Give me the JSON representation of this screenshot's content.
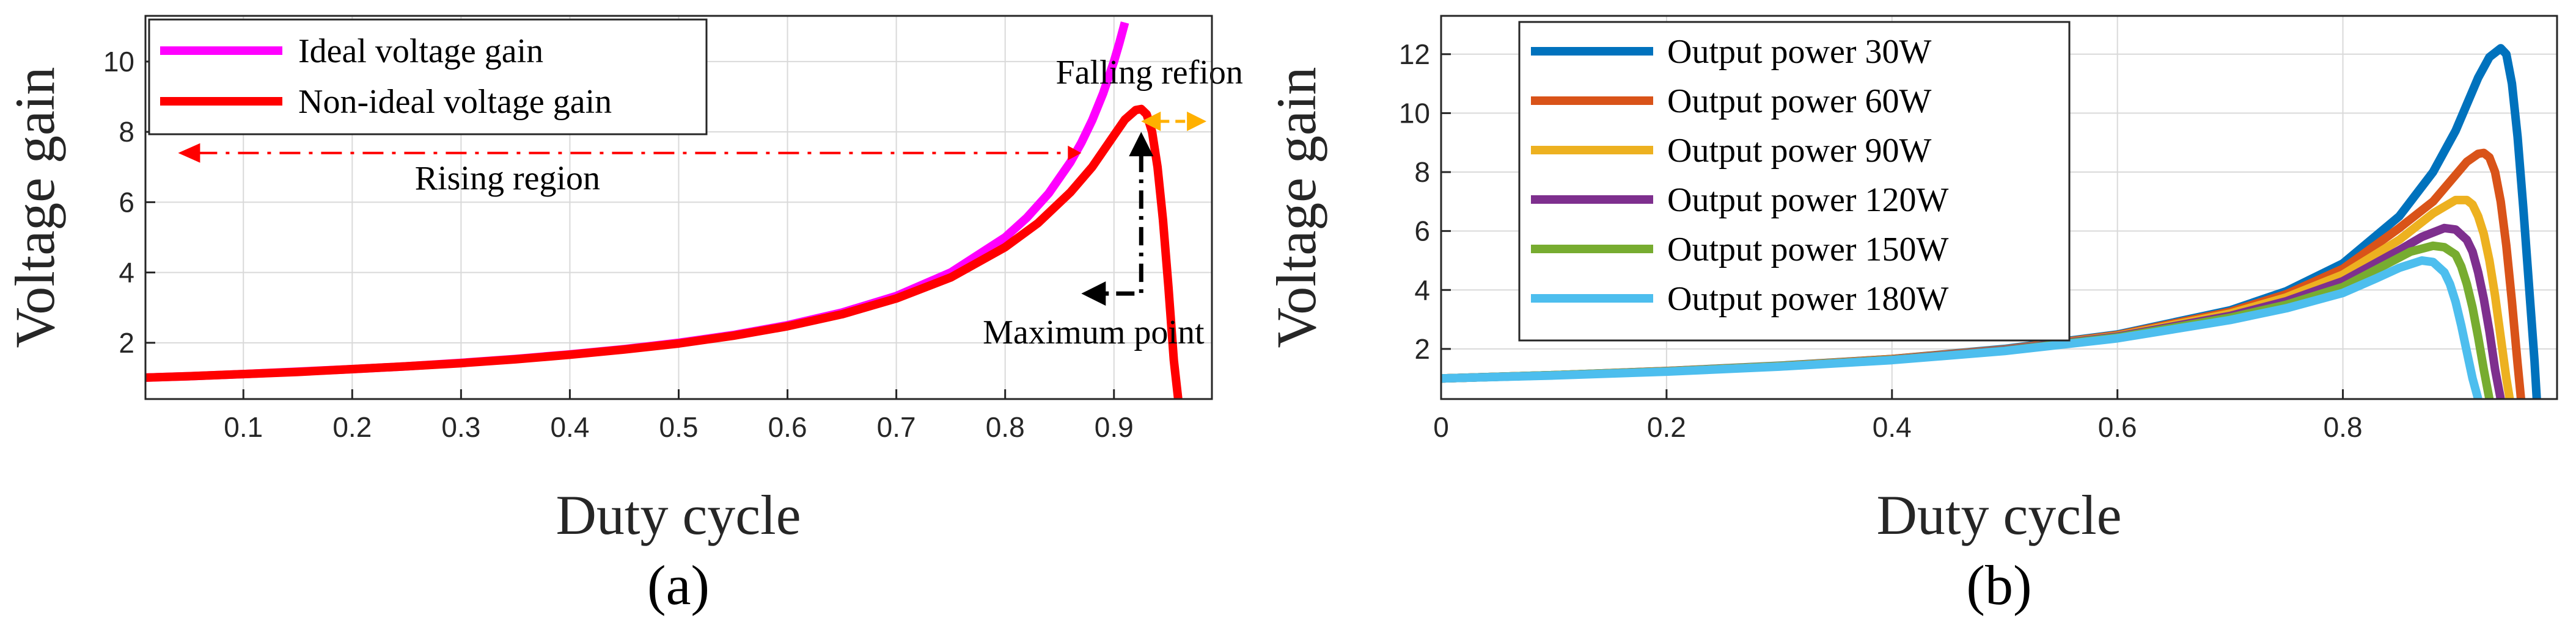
{
  "chart_data": [
    {
      "type": "line",
      "panel": "a",
      "caption": "(a)",
      "xlabel": "Duty cycle",
      "ylabel": "Voltage gain",
      "xlim": [
        0.01,
        0.99
      ],
      "ylim": [
        0.4,
        11.3
      ],
      "xticks": [
        0.1,
        0.2,
        0.3,
        0.4,
        0.5,
        0.6,
        0.7,
        0.8,
        0.9
      ],
      "xtick_labels": [
        "0.1",
        "0.2",
        "0.3",
        "0.4",
        "0.5",
        "0.6",
        "0.7",
        "0.8",
        "0.9"
      ],
      "yticks": [
        2,
        4,
        6,
        8,
        10
      ],
      "ytick_labels": [
        "2",
        "4",
        "6",
        "8",
        "10"
      ],
      "grid": true,
      "legend_position": "top-left",
      "series": [
        {
          "name": "Ideal voltage gain",
          "color": "#ff00ff",
          "x": [
            0.01,
            0.05,
            0.1,
            0.15,
            0.2,
            0.25,
            0.3,
            0.35,
            0.4,
            0.45,
            0.5,
            0.55,
            0.6,
            0.65,
            0.7,
            0.75,
            0.8,
            0.82,
            0.84,
            0.86,
            0.87,
            0.88,
            0.89,
            0.9,
            0.905,
            0.91
          ],
          "y": [
            1.01,
            1.05,
            1.11,
            1.18,
            1.25,
            1.33,
            1.43,
            1.54,
            1.67,
            1.82,
            2.0,
            2.22,
            2.5,
            2.86,
            3.33,
            4.0,
            5.0,
            5.56,
            6.25,
            7.14,
            7.69,
            8.33,
            9.09,
            10.0,
            10.53,
            11.11
          ]
        },
        {
          "name": "Non-ideal voltage gain",
          "color": "#ff0000",
          "x": [
            0.01,
            0.05,
            0.1,
            0.15,
            0.2,
            0.25,
            0.3,
            0.35,
            0.4,
            0.45,
            0.5,
            0.55,
            0.6,
            0.65,
            0.7,
            0.75,
            0.8,
            0.83,
            0.86,
            0.88,
            0.9,
            0.91,
            0.92,
            0.925,
            0.93,
            0.935,
            0.94,
            0.945,
            0.95,
            0.955,
            0.959
          ],
          "y": [
            1.01,
            1.05,
            1.11,
            1.17,
            1.25,
            1.33,
            1.42,
            1.53,
            1.66,
            1.81,
            1.98,
            2.2,
            2.47,
            2.81,
            3.26,
            3.86,
            4.72,
            5.4,
            6.28,
            7.0,
            7.9,
            8.35,
            8.62,
            8.65,
            8.5,
            8.0,
            7.0,
            5.5,
            3.6,
            1.5,
            0.4
          ]
        }
      ],
      "annotations": {
        "rising": {
          "text": "Rising region",
          "color": "#ff0000",
          "y": 7.4,
          "x_from": 0.87,
          "x_to": 0.04
        },
        "falling": {
          "text": "Falling refion",
          "color": "#ffb000",
          "y": 8.3,
          "x_from": 0.925,
          "x_to": 0.985
        },
        "maximum": {
          "text": "Maximum point",
          "color": "#000000",
          "x": 0.925,
          "y_from": 3.4,
          "y_to": 8.0,
          "x_left": 0.87
        }
      }
    },
    {
      "type": "line",
      "panel": "b",
      "caption": "(b)",
      "xlabel": "Duty cycle",
      "ylabel": "Voltage gain",
      "xlim": [
        0.0,
        0.99
      ],
      "ylim": [
        0.3,
        13.3
      ],
      "xticks": [
        0,
        0.2,
        0.4,
        0.6,
        0.8
      ],
      "xtick_labels": [
        "0",
        "0.2",
        "0.4",
        "0.6",
        "0.8"
      ],
      "yticks": [
        2,
        4,
        6,
        8,
        10,
        12
      ],
      "ytick_labels": [
        "2",
        "4",
        "6",
        "8",
        "10",
        "12"
      ],
      "grid": true,
      "legend_position": "top-left",
      "series": [
        {
          "name": "Output power 30W",
          "color": "#0072bd",
          "x": [
            0.0,
            0.1,
            0.2,
            0.3,
            0.4,
            0.5,
            0.6,
            0.7,
            0.75,
            0.8,
            0.85,
            0.88,
            0.9,
            0.92,
            0.93,
            0.94,
            0.945,
            0.95,
            0.955,
            0.96,
            0.965,
            0.97,
            0.972
          ],
          "y": [
            1.0,
            1.11,
            1.25,
            1.43,
            1.66,
            2.0,
            2.49,
            3.31,
            3.96,
            4.9,
            6.5,
            8.0,
            9.4,
            11.2,
            11.9,
            12.2,
            12.0,
            11.0,
            9.2,
            6.8,
            4.2,
            1.6,
            0.3
          ]
        },
        {
          "name": "Output power 60W",
          "color": "#d95319",
          "x": [
            0.0,
            0.1,
            0.2,
            0.3,
            0.4,
            0.5,
            0.6,
            0.7,
            0.75,
            0.8,
            0.85,
            0.88,
            0.9,
            0.91,
            0.92,
            0.925,
            0.93,
            0.935,
            0.94,
            0.945,
            0.95,
            0.955,
            0.958
          ],
          "y": [
            1.0,
            1.11,
            1.25,
            1.42,
            1.66,
            1.98,
            2.47,
            3.26,
            3.86,
            4.72,
            6.1,
            7.0,
            7.9,
            8.35,
            8.62,
            8.65,
            8.5,
            8.0,
            7.0,
            5.5,
            3.6,
            1.5,
            0.3
          ]
        },
        {
          "name": "Output power 90W",
          "color": "#edb120",
          "x": [
            0.0,
            0.1,
            0.2,
            0.3,
            0.4,
            0.5,
            0.6,
            0.7,
            0.75,
            0.8,
            0.85,
            0.88,
            0.9,
            0.91,
            0.915,
            0.92,
            0.925,
            0.93,
            0.935,
            0.94,
            0.945,
            0.948
          ],
          "y": [
            1.0,
            1.11,
            1.24,
            1.42,
            1.65,
            1.97,
            2.44,
            3.2,
            3.75,
            4.52,
            5.7,
            6.6,
            7.05,
            7.05,
            6.9,
            6.5,
            5.9,
            5.0,
            3.8,
            2.4,
            1.0,
            0.3
          ]
        },
        {
          "name": "Output power 120W",
          "color": "#7e2f8e",
          "x": [
            0.0,
            0.1,
            0.2,
            0.3,
            0.4,
            0.5,
            0.6,
            0.7,
            0.75,
            0.8,
            0.85,
            0.87,
            0.89,
            0.9,
            0.91,
            0.915,
            0.92,
            0.925,
            0.93,
            0.935,
            0.94
          ],
          "y": [
            1.0,
            1.11,
            1.24,
            1.41,
            1.64,
            1.96,
            2.42,
            3.12,
            3.62,
            4.3,
            5.35,
            5.8,
            6.1,
            6.05,
            5.7,
            5.3,
            4.6,
            3.7,
            2.6,
            1.3,
            0.3
          ]
        },
        {
          "name": "Output power 150W",
          "color": "#77ac30",
          "x": [
            0.0,
            0.1,
            0.2,
            0.3,
            0.4,
            0.5,
            0.6,
            0.7,
            0.75,
            0.8,
            0.84,
            0.86,
            0.88,
            0.89,
            0.9,
            0.905,
            0.91,
            0.915,
            0.92,
            0.925,
            0.93
          ],
          "y": [
            1.0,
            1.11,
            1.24,
            1.41,
            1.63,
            1.94,
            2.39,
            3.06,
            3.5,
            4.1,
            4.9,
            5.3,
            5.5,
            5.45,
            5.2,
            4.8,
            4.2,
            3.4,
            2.4,
            1.3,
            0.3
          ]
        },
        {
          "name": "Output power 180W",
          "color": "#4dbeee",
          "x": [
            0.0,
            0.1,
            0.2,
            0.3,
            0.4,
            0.5,
            0.6,
            0.7,
            0.75,
            0.8,
            0.83,
            0.85,
            0.87,
            0.88,
            0.89,
            0.895,
            0.9,
            0.905,
            0.91,
            0.915,
            0.92
          ],
          "y": [
            1.0,
            1.1,
            1.23,
            1.4,
            1.62,
            1.93,
            2.36,
            2.98,
            3.38,
            3.9,
            4.4,
            4.75,
            5.0,
            4.95,
            4.6,
            4.2,
            3.6,
            2.8,
            1.9,
            1.0,
            0.3
          ]
        }
      ]
    }
  ]
}
